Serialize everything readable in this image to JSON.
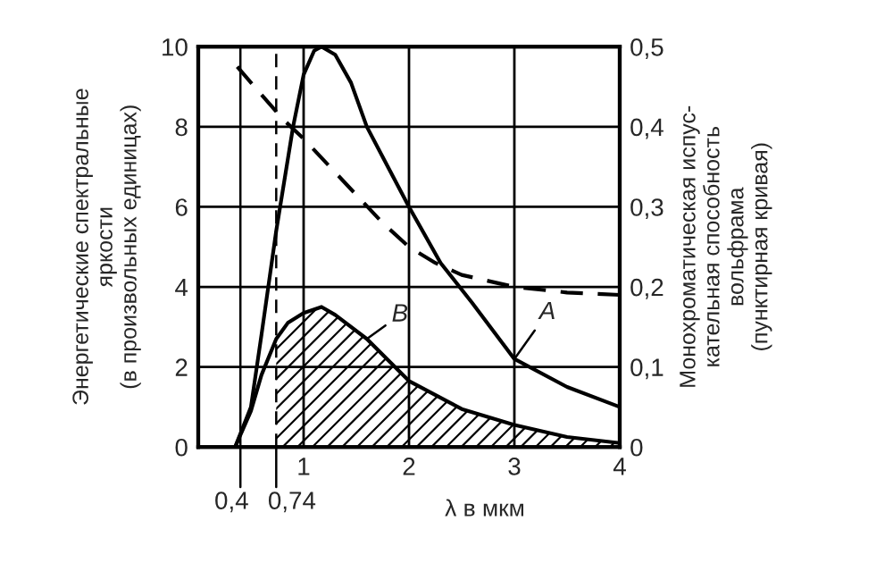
{
  "chart_data": {
    "type": "line",
    "xlabel": "λ в мкм",
    "ylabel": "Энергетические спектральные\nяркости\n(в произвольных единицах)",
    "y2label": "Монохроматическая испус-\nкательная способность\nвольфрама\n(пунктирная кривая)",
    "xlim": [
      0,
      4
    ],
    "xticks": [
      1,
      2,
      3,
      4
    ],
    "ylim": [
      0,
      10
    ],
    "yticks": [
      0,
      2,
      4,
      6,
      8,
      10
    ],
    "y2lim": [
      0,
      0.5
    ],
    "y2ticks": [
      {
        "value": 0,
        "label": "0"
      },
      {
        "value": 0.1,
        "label": "0,1"
      },
      {
        "value": 0.2,
        "label": "0,2"
      },
      {
        "value": 0.3,
        "label": "0,3"
      },
      {
        "value": 0.4,
        "label": "0,4"
      },
      {
        "value": 0.5,
        "label": "0,5"
      }
    ],
    "grid": true,
    "series": [
      {
        "name": "A",
        "color": "#000000",
        "line_style": "solid",
        "x": [
          0.35,
          0.5,
          0.6,
          0.74,
          0.9,
          1.0,
          1.1,
          1.17,
          1.3,
          1.45,
          1.6,
          1.8,
          2.0,
          2.3,
          2.6,
          3.0,
          3.5,
          4.0
        ],
        "values": [
          0,
          1.0,
          2.8,
          5.4,
          8.0,
          9.3,
          9.9,
          10.0,
          9.8,
          9.1,
          8.0,
          7.0,
          6.0,
          4.6,
          3.6,
          2.2,
          1.5,
          1.0
        ]
      },
      {
        "name": "B",
        "color": "#000000",
        "line_style": "solid",
        "x": [
          0.35,
          0.5,
          0.6,
          0.74,
          0.85,
          1.0,
          1.17,
          1.3,
          1.6,
          2.0,
          2.5,
          3.0,
          3.5,
          4.0
        ],
        "values": [
          0,
          0.9,
          1.8,
          2.7,
          3.1,
          3.35,
          3.5,
          3.3,
          2.7,
          1.65,
          0.95,
          0.55,
          0.25,
          0.1
        ]
      },
      {
        "type": "area",
        "color": "#000000",
        "x": [
          0.74,
          0.85,
          1.0,
          1.17,
          1.3,
          1.6,
          2.0,
          2.5,
          3.0,
          3.5,
          4.0
        ],
        "values": [
          2.7,
          3.1,
          3.35,
          3.5,
          3.3,
          2.7,
          1.65,
          0.95,
          0.55,
          0.25,
          0.1
        ]
      },
      {
        "color": "#000000",
        "line_style": "dashed",
        "axis": "y2",
        "x": [
          0.37,
          0.6,
          0.8,
          1.0,
          1.25,
          1.5,
          1.75,
          2.0,
          2.25,
          2.5,
          3.0,
          3.5,
          4.0
        ],
        "values": [
          0.475,
          0.44,
          0.41,
          0.385,
          0.35,
          0.315,
          0.28,
          0.25,
          0.23,
          0.215,
          0.2,
          0.193,
          0.19
        ]
      }
    ],
    "ref_lines": [
      {
        "axis": "x",
        "value": 0.4,
        "label": "0,4",
        "line_style": "solid"
      },
      {
        "axis": "x",
        "value": 0.74,
        "label": "0,74",
        "line_style": "dashed"
      }
    ],
    "legend": false
  }
}
